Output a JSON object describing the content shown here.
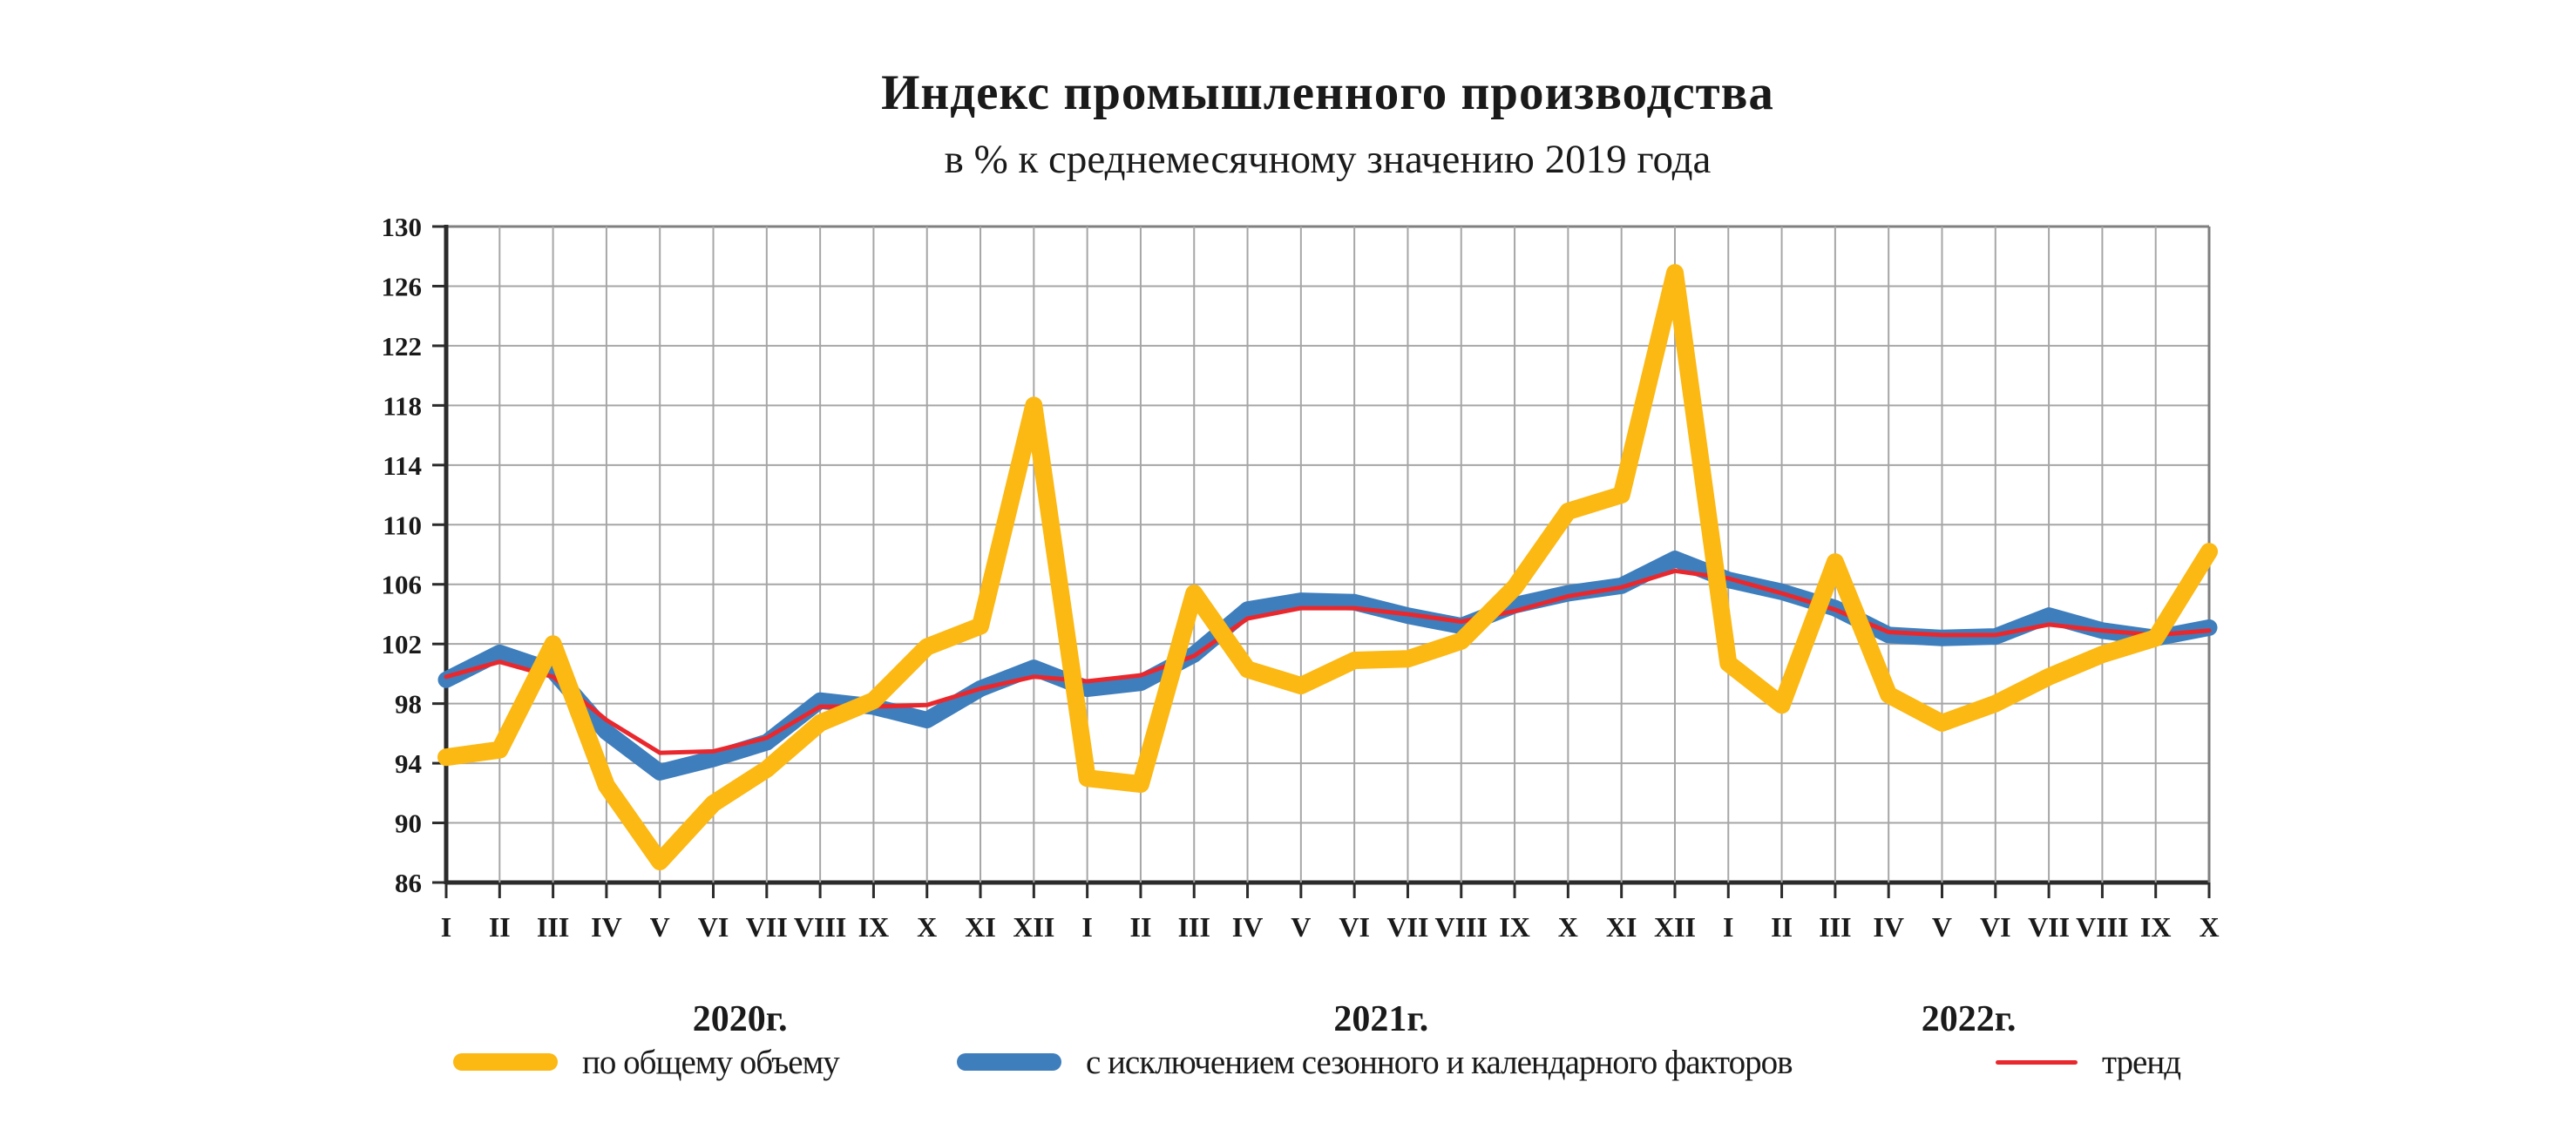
{
  "chart_data": {
    "type": "line",
    "title": "Индекс промышленного производства",
    "subtitle": "в % к среднемесячному значению 2019 года",
    "ylim": [
      86,
      130
    ],
    "ytick_step": 4,
    "grid": true,
    "legend_position": "bottom",
    "x_labels": [
      "I",
      "II",
      "III",
      "IV",
      "V",
      "VI",
      "VII",
      "VIII",
      "IX",
      "X",
      "XI",
      "XII",
      "I",
      "II",
      "III",
      "IV",
      "V",
      "VI",
      "VII",
      "VIII",
      "IX",
      "X",
      "XI",
      "XII",
      "I",
      "II",
      "III",
      "IV",
      "V",
      "VI",
      "VII",
      "VIII",
      "IX",
      "X"
    ],
    "year_groups": [
      {
        "label": "2020г.",
        "from": 0,
        "to": 11
      },
      {
        "label": "2021г.",
        "from": 12,
        "to": 23
      },
      {
        "label": "2022г.",
        "from": 24,
        "to": 33
      }
    ],
    "series": [
      {
        "name": "по общему объему",
        "color": "#FCB813",
        "width": 20,
        "values": [
          94.4,
          94.9,
          102,
          92.5,
          87.4,
          91.3,
          93.6,
          96.7,
          98.2,
          101.8,
          103.2,
          118,
          93,
          92.6,
          105.4,
          100.3,
          99.2,
          100.9,
          101,
          102.2,
          105.8,
          110.9,
          112,
          126.9,
          100.7,
          97.9,
          107.5,
          98.6,
          96.7,
          98,
          99.8,
          101.3,
          102.4,
          108.2
        ]
      },
      {
        "name": "с исключением сезонного и календарного факторов",
        "color": "#3E7EBD",
        "width": 19,
        "values": [
          99.6,
          101.4,
          100.2,
          96.1,
          93.4,
          94.3,
          95.4,
          98.2,
          97.8,
          96.9,
          99,
          100.4,
          99,
          99.4,
          101.3,
          104.3,
          104.9,
          104.8,
          103.9,
          103.2,
          104.6,
          105.4,
          105.9,
          107.7,
          106.3,
          105.5,
          104.4,
          102.6,
          102.4,
          102.5,
          103.9,
          102.9,
          102.4,
          103.1
        ]
      },
      {
        "name": "тренд",
        "color": "#E9282E",
        "width": 5,
        "values": [
          99.8,
          100.8,
          99.8,
          96.9,
          94.7,
          94.8,
          95.7,
          97.8,
          97.8,
          97.9,
          99,
          99.8,
          99.5,
          99.9,
          101.2,
          103.7,
          104.4,
          104.4,
          104,
          103.5,
          104.2,
          105.2,
          105.8,
          106.9,
          106.4,
          105.4,
          104.3,
          102.8,
          102.6,
          102.6,
          103.3,
          102.9,
          102.6,
          102.9
        ]
      }
    ],
    "colors": {
      "gridline": "#A6A6A6",
      "axis": "#2B2B2B",
      "border": "#7F7F7F",
      "text": "#1A1A1A",
      "background": "#FFFFFF"
    }
  }
}
